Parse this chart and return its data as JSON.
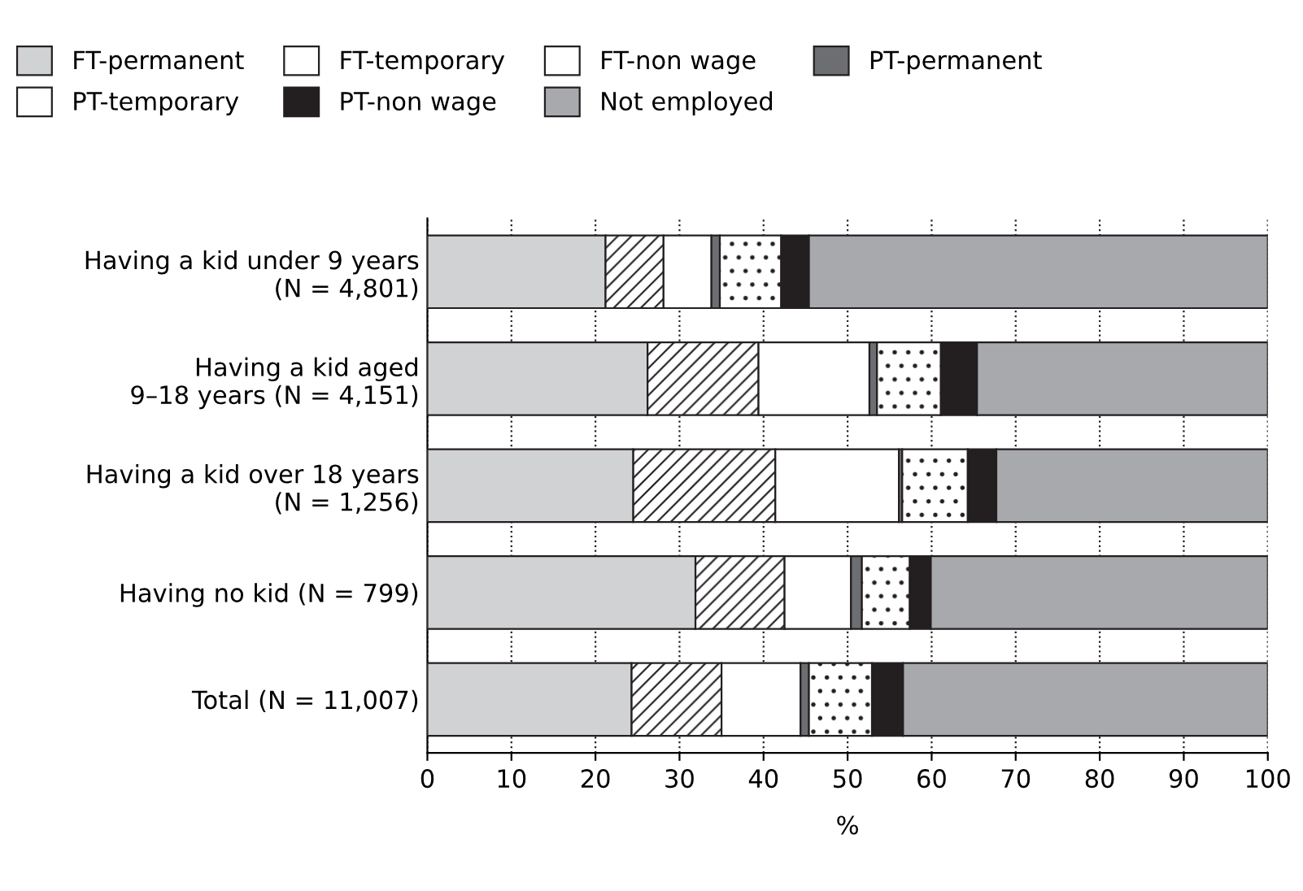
{
  "chart_data": {
    "type": "bar",
    "orientation": "horizontal",
    "stacked": true,
    "xlabel": "%",
    "categories": [
      "Having a kid under 9 years\n(N = 4,801)",
      "Having a kid aged\n9–18 years (N = 4,151)",
      "Having a kid over 18 years\n(N = 1,256)",
      "Having no kid (N = 799)",
      "Total (N = 11,007)"
    ],
    "series": [
      {
        "name": "FT-permanent",
        "color": "#d1d2d4",
        "values": [
          21.2,
          26.2,
          24.5,
          31.9,
          24.3
        ]
      },
      {
        "name": "FT-temporary",
        "color": "#ffffff",
        "values": [
          6.9,
          13.2,
          16.9,
          10.6,
          10.7
        ]
      },
      {
        "name": "FT-non wage",
        "color": "#ffffff",
        "values": [
          5.7,
          13.2,
          14.7,
          7.9,
          9.4
        ]
      },
      {
        "name": "PT-permanent",
        "color": "#6d6e71",
        "values": [
          1.0,
          0.9,
          0.4,
          1.3,
          1.0
        ]
      },
      {
        "name": "PT-temporary",
        "color": "#ffffff",
        "values": [
          7.3,
          7.6,
          7.8,
          5.7,
          7.5
        ]
      },
      {
        "name": "PT-non wage",
        "color": "#231f20",
        "values": [
          3.3,
          4.3,
          3.4,
          2.5,
          3.7
        ]
      },
      {
        "name": "Not employed",
        "color": "#a7a9ac",
        "values": [
          54.6,
          34.6,
          32.3,
          40.1,
          43.4
        ]
      }
    ],
    "xlim": [
      0,
      100
    ],
    "xticks": [
      0,
      10,
      20,
      30,
      40,
      50,
      60,
      70,
      80,
      90,
      100
    ],
    "grid": "x",
    "legend": "top"
  }
}
